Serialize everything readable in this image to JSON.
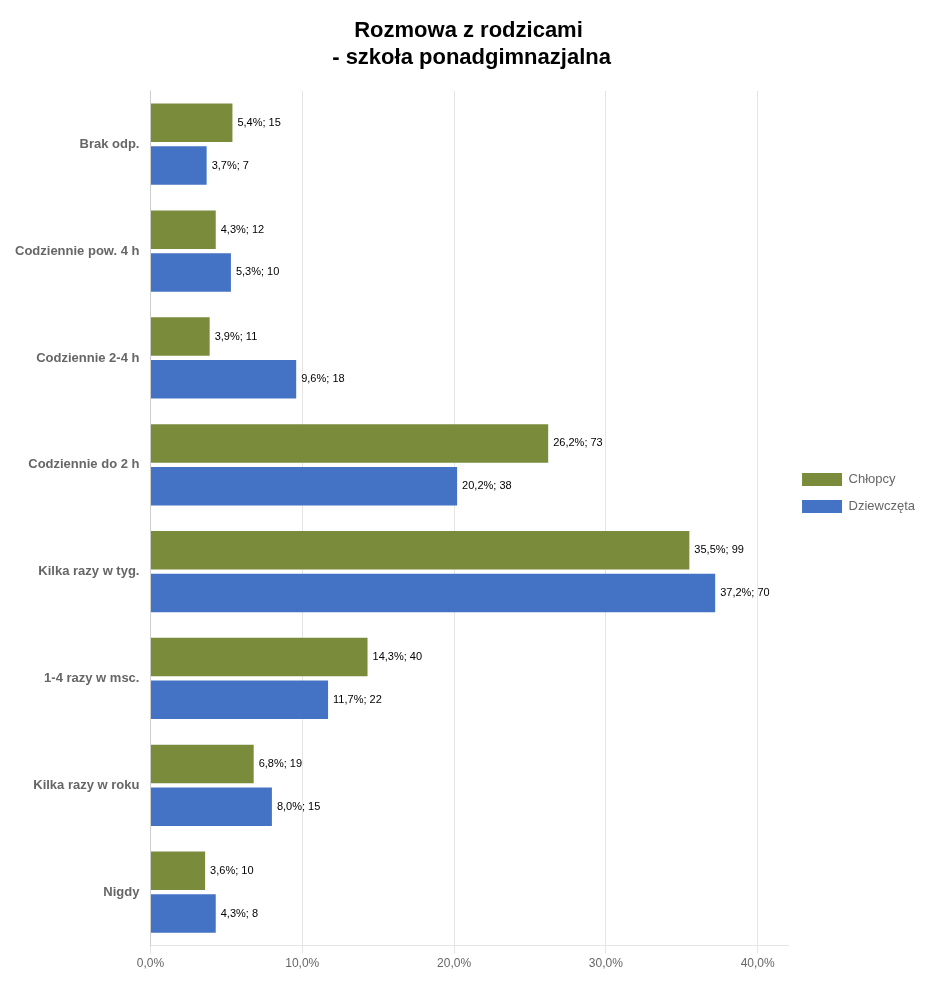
{
  "chart_data": {
    "type": "bar",
    "orientation": "horizontal",
    "title": "Rozmowa z rodzicami\n - szkoła ponadgimnazjalna",
    "categories": [
      "Nigdy",
      "Kilka razy w roku",
      "1-4 razy w msc.",
      "Kilka razy w tyg.",
      "Codziennie do 2 h",
      "Codziennie 2-4 h",
      "Codziennie pow. 4 h",
      "Brak odp."
    ],
    "series": [
      {
        "name": "Chłopcy",
        "color": "#7a8c3c",
        "values": [
          3.6,
          6.8,
          14.3,
          35.5,
          26.2,
          3.9,
          4.3,
          5.4
        ],
        "value_labels": [
          "3,6%; 10",
          "6,8%; 19",
          "14,3%; 40",
          "35,5%; 99",
          "26,2%; 73",
          "3,9%; 11",
          "4,3%; 12",
          "5,4%; 15"
        ]
      },
      {
        "name": "Dziewczęta",
        "color": "#4472c4",
        "values": [
          4.3,
          8.0,
          11.7,
          37.2,
          20.2,
          9.6,
          5.3,
          3.7
        ],
        "value_labels": [
          "4,3%; 8",
          "8,0%; 15",
          "11,7%; 22",
          "37,2%; 70",
          "20,2%; 38",
          "9,6%; 18",
          "5,3%; 10",
          "3,7%; 7"
        ]
      }
    ],
    "xlim": [
      0,
      42
    ],
    "xticks": [
      {
        "value": 0,
        "label": "0,0%"
      },
      {
        "value": 10,
        "label": "10,0%"
      },
      {
        "value": 20,
        "label": "20,0%"
      },
      {
        "value": 30,
        "label": "30,0%"
      },
      {
        "value": 40,
        "label": "40,0%"
      }
    ],
    "grid": true,
    "legend": "right",
    "data_labels": true
  }
}
